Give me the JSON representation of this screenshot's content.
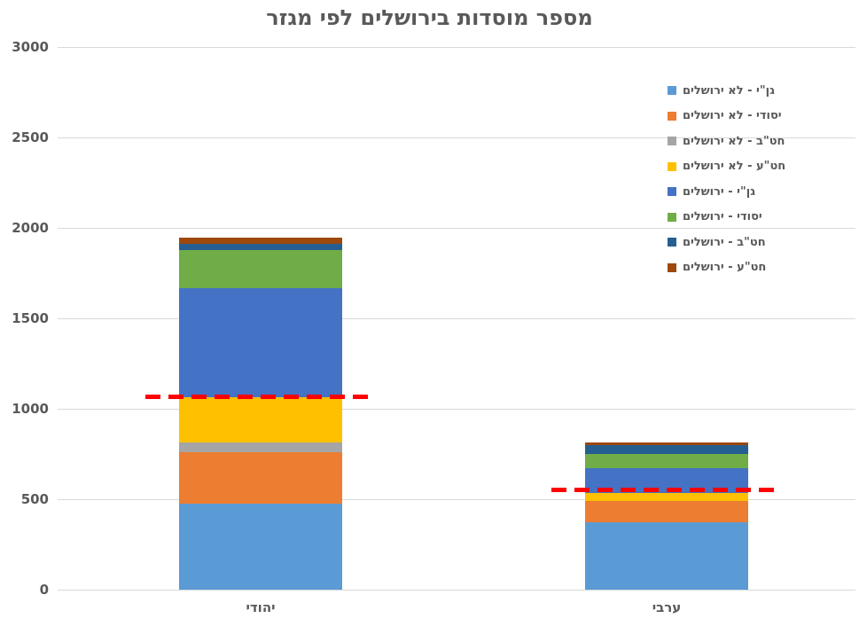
{
  "chart_data": {
    "type": "bar",
    "stacked": true,
    "title": "מספר מוסדות בירושלים לפי מגזר",
    "categories": [
      "יהודי",
      "ערבי"
    ],
    "series": [
      {
        "name": "גן\"י - לא ירושלים",
        "color": "#5B9BD5",
        "values": [
          475,
          375
        ]
      },
      {
        "name": "יסודי - לא ירושלים",
        "color": "#ED7D31",
        "values": [
          285,
          115
        ]
      },
      {
        "name": "חט\"ב - לא ירושלים",
        "color": "#A5A5A5",
        "values": [
          55,
          0
        ]
      },
      {
        "name": "חט\"ע - לא ירושלים",
        "color": "#FFC000",
        "values": [
          250,
          45
        ]
      },
      {
        "name": "גן\"י - ירושלים",
        "color": "#4472C4",
        "values": [
          600,
          135
        ]
      },
      {
        "name": "יסודי - ירושלים",
        "color": "#70AD47",
        "values": [
          215,
          80
        ]
      },
      {
        "name": "חט\"ב - ירושלים",
        "color": "#255E91",
        "values": [
          30,
          50
        ]
      },
      {
        "name": "חט\"ע - ירושלים",
        "color": "#9E480E",
        "values": [
          35,
          15
        ]
      }
    ],
    "totals": [
      1945,
      815
    ],
    "reference_lines": [
      {
        "category": "יהודי",
        "value": 1065,
        "color": "#FF0000",
        "style": "dashed"
      },
      {
        "category": "ערבי",
        "value": 550,
        "color": "#FF0000",
        "style": "dashed"
      }
    ],
    "ylim": [
      0,
      3000
    ],
    "yticks": [
      0,
      500,
      1000,
      1500,
      2000,
      2500,
      3000
    ],
    "grid": true,
    "gridline_color": "#d9d9d9",
    "legend_position": "top-right"
  }
}
